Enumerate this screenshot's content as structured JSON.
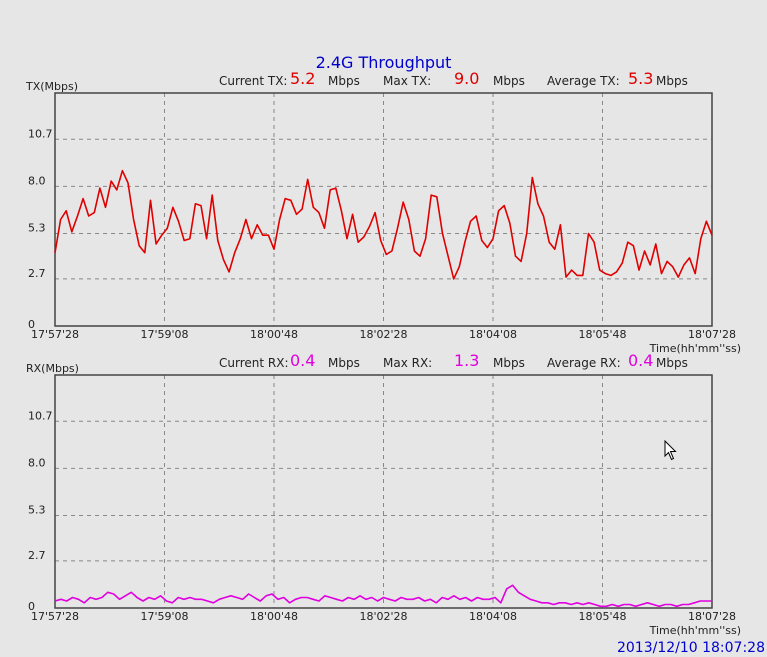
{
  "title": "2.4G Throughput",
  "timestamp": "2013/12/10 18:07:28",
  "unit_label": "Mbps",
  "time_axis_label": "Time(hh'mm''ss)",
  "colors": {
    "tx": "#e00000",
    "rx": "#e000e0",
    "title": "#0000cc",
    "grid": "#888888"
  },
  "tx": {
    "axis_label": "TX(Mbps)",
    "current_label": "Current TX:",
    "current_value": "5.2",
    "max_label": "Max TX:",
    "max_value": "9.0",
    "avg_label": "Average TX:",
    "avg_value": "5.3"
  },
  "rx": {
    "axis_label": "RX(Mbps)",
    "current_label": "Current RX:",
    "current_value": "0.4",
    "max_label": "Max RX:",
    "max_value": "1.3",
    "avg_label": "Average RX:",
    "avg_value": "0.4"
  },
  "chart_data": [
    {
      "type": "line",
      "ylabel": "TX(Mbps)",
      "xlabel": "Time(hh'mm''ss)",
      "x_tick_labels": [
        "17'57'28",
        "17'59'08",
        "18'00'48",
        "18'02'28",
        "18'04'08",
        "18'05'48",
        "18'07'28"
      ],
      "y_tick_labels": [
        "0",
        "2.7",
        "5.3",
        "8.0",
        "10.7"
      ],
      "y_ticks": [
        0,
        2.7,
        5.3,
        8.0,
        10.7
      ],
      "ylim": [
        0,
        13.35
      ],
      "x_range_seconds": 600,
      "grid": true,
      "series": [
        {
          "color": "#e00000",
          "values": [
            4.2,
            6.1,
            6.6,
            5.4,
            6.3,
            7.3,
            6.3,
            6.5,
            7.9,
            6.8,
            8.3,
            7.8,
            8.9,
            8.2,
            6.1,
            4.6,
            4.2,
            7.2,
            4.7,
            5.2,
            5.6,
            6.8,
            6.0,
            4.9,
            5.0,
            7.0,
            6.9,
            5.0,
            7.5,
            4.9,
            3.8,
            3.1,
            4.2,
            5.0,
            6.1,
            5.0,
            5.8,
            5.2,
            5.2,
            4.4,
            6.1,
            7.3,
            7.2,
            6.4,
            6.7,
            8.4,
            6.8,
            6.5,
            5.6,
            7.8,
            7.9,
            6.6,
            5.0,
            6.4,
            4.8,
            5.1,
            5.7,
            6.5,
            4.9,
            4.1,
            4.3,
            5.6,
            7.1,
            6.1,
            4.3,
            4.0,
            5.0,
            7.5,
            7.4,
            5.3,
            4.0,
            2.7,
            3.4,
            4.8,
            6.0,
            6.3,
            4.9,
            4.5,
            5.0,
            6.6,
            6.9,
            5.9,
            4.0,
            3.7,
            5.3,
            8.5,
            7.0,
            6.3,
            4.8,
            4.4,
            5.8,
            2.8,
            3.2,
            2.9,
            2.9,
            5.3,
            4.8,
            3.2,
            3.0,
            2.9,
            3.1,
            3.6,
            4.8,
            4.6,
            3.2,
            4.3,
            3.5,
            4.7,
            3.0,
            3.7,
            3.4,
            2.8,
            3.5,
            3.9,
            3.0,
            5.0,
            6.0,
            5.2
          ]
        }
      ]
    },
    {
      "type": "line",
      "ylabel": "RX(Mbps)",
      "xlabel": "Time(hh'mm''ss)",
      "x_tick_labels": [
        "17'57'28",
        "17'59'08",
        "18'00'48",
        "18'02'28",
        "18'04'08",
        "18'05'48",
        "18'07'28"
      ],
      "y_tick_labels": [
        "0",
        "2.7",
        "5.3",
        "8.0",
        "10.7"
      ],
      "y_ticks": [
        0,
        2.7,
        5.3,
        8.0,
        10.7
      ],
      "ylim": [
        0,
        13.35
      ],
      "x_range_seconds": 600,
      "grid": true,
      "series": [
        {
          "color": "#e000e0",
          "values": [
            0.4,
            0.5,
            0.4,
            0.6,
            0.5,
            0.3,
            0.6,
            0.5,
            0.6,
            0.9,
            0.8,
            0.5,
            0.7,
            0.9,
            0.6,
            0.4,
            0.6,
            0.5,
            0.7,
            0.4,
            0.3,
            0.6,
            0.5,
            0.6,
            0.5,
            0.5,
            0.4,
            0.3,
            0.5,
            0.6,
            0.7,
            0.6,
            0.5,
            0.8,
            0.6,
            0.4,
            0.7,
            0.8,
            0.5,
            0.6,
            0.3,
            0.5,
            0.6,
            0.6,
            0.5,
            0.4,
            0.7,
            0.6,
            0.5,
            0.4,
            0.6,
            0.5,
            0.7,
            0.5,
            0.6,
            0.4,
            0.6,
            0.5,
            0.4,
            0.6,
            0.5,
            0.5,
            0.6,
            0.4,
            0.5,
            0.3,
            0.6,
            0.5,
            0.7,
            0.5,
            0.6,
            0.4,
            0.6,
            0.5,
            0.5,
            0.6,
            0.3,
            1.1,
            1.3,
            0.9,
            0.7,
            0.5,
            0.4,
            0.3,
            0.3,
            0.2,
            0.3,
            0.3,
            0.2,
            0.3,
            0.2,
            0.3,
            0.2,
            0.1,
            0.1,
            0.2,
            0.1,
            0.2,
            0.2,
            0.1,
            0.2,
            0.3,
            0.2,
            0.1,
            0.2,
            0.2,
            0.1,
            0.2,
            0.2,
            0.3,
            0.4,
            0.4,
            0.4
          ]
        }
      ]
    }
  ]
}
